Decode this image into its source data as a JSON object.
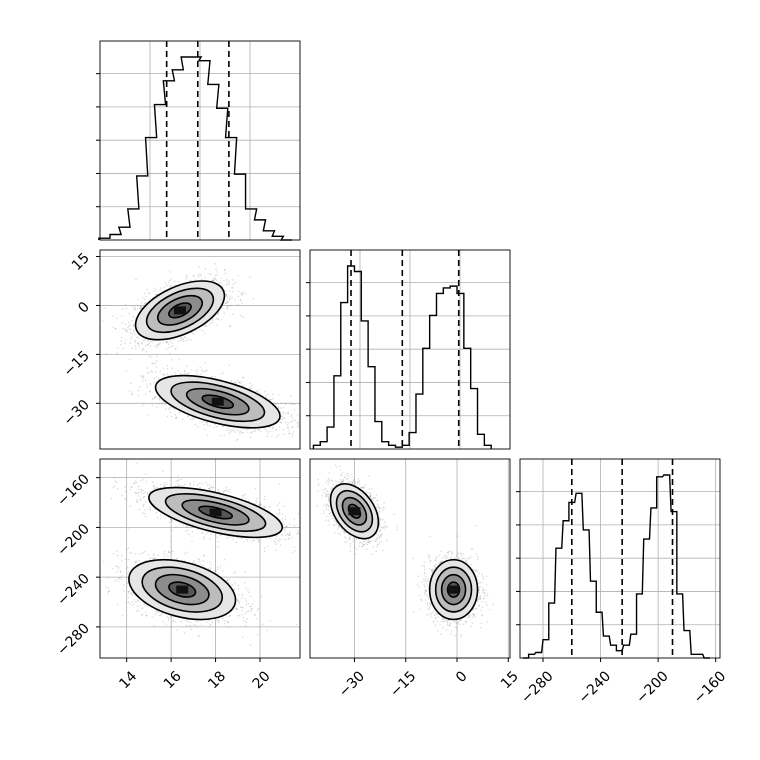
{
  "figure": {
    "kind": "corner plot",
    "background": "#ffffff",
    "line_color": "#000000",
    "point_color": "#888888",
    "grid_color": "#b0b0b0"
  },
  "chart_data": [
    {
      "id": "hist_p0",
      "type": "histogram",
      "grid": true,
      "xlim": [
        12.8,
        21.8
      ],
      "quantile_lines": [
        15.8,
        17.2,
        18.6
      ],
      "bins": [
        [
          13.0,
          0.01
        ],
        [
          13.5,
          0.03
        ],
        [
          13.9,
          0.07
        ],
        [
          14.3,
          0.17
        ],
        [
          14.7,
          0.35
        ],
        [
          15.1,
          0.56
        ],
        [
          15.5,
          0.74
        ],
        [
          15.9,
          0.87
        ],
        [
          16.3,
          0.93
        ],
        [
          16.7,
          1.0
        ],
        [
          17.1,
          1.0
        ],
        [
          17.5,
          0.98
        ],
        [
          17.9,
          0.85
        ],
        [
          18.3,
          0.72
        ],
        [
          18.7,
          0.56
        ],
        [
          19.1,
          0.36
        ],
        [
          19.6,
          0.17
        ],
        [
          20.0,
          0.11
        ],
        [
          20.4,
          0.05
        ],
        [
          20.8,
          0.02
        ],
        [
          21.2,
          0.0
        ]
      ]
    },
    {
      "id": "scatter_p0_p1",
      "type": "scatter",
      "subtype": "2d-density-contour",
      "grid": true,
      "xlim": [
        12.8,
        21.8
      ],
      "ylim": [
        -44,
        17
      ],
      "yticks": [
        "15",
        "0",
        "−15",
        "−30"
      ],
      "clusters": [
        {
          "center": [
            16.4,
            -1.5
          ],
          "sd": [
            1.0,
            4.5
          ],
          "rho": 0.5,
          "n": 2200
        },
        {
          "center": [
            18.1,
            -29.5
          ],
          "sd": [
            1.4,
            4.0
          ],
          "rho": -0.55,
          "n": 2200
        }
      ]
    },
    {
      "id": "hist_p1",
      "type": "histogram",
      "grid": true,
      "xlim": [
        -43,
        15.5
      ],
      "quantile_lines": [
        -31,
        -16,
        0.5
      ],
      "bins": [
        [
          -41,
          0.02
        ],
        [
          -39,
          0.04
        ],
        [
          -37,
          0.12
        ],
        [
          -35,
          0.4
        ],
        [
          -33,
          0.8
        ],
        [
          -31,
          1.0
        ],
        [
          -29,
          0.97
        ],
        [
          -27,
          0.7
        ],
        [
          -25,
          0.45
        ],
        [
          -23,
          0.15
        ],
        [
          -21,
          0.04
        ],
        [
          -19,
          0.02
        ],
        [
          -17,
          0.01
        ],
        [
          -15,
          0.02
        ],
        [
          -13,
          0.09
        ],
        [
          -11,
          0.3
        ],
        [
          -9,
          0.55
        ],
        [
          -7,
          0.73
        ],
        [
          -5,
          0.85
        ],
        [
          -3,
          0.88
        ],
        [
          -1,
          0.89
        ],
        [
          1,
          0.85
        ],
        [
          3,
          0.55
        ],
        [
          5,
          0.33
        ],
        [
          7,
          0.08
        ],
        [
          9,
          0.02
        ]
      ]
    },
    {
      "id": "scatter_p0_p2",
      "type": "scatter",
      "subtype": "2d-density-contour",
      "grid": true,
      "xlim": [
        12.8,
        21.8
      ],
      "ylim": [
        -305,
        -145
      ],
      "xticks": [
        "14",
        "16",
        "18",
        "20"
      ],
      "yticks": [
        "−160",
        "−200",
        "−240",
        "−280"
      ],
      "clusters": [
        {
          "center": [
            18.0,
            -188
          ],
          "sd": [
            1.5,
            10
          ],
          "rho": -0.6,
          "n": 2200
        },
        {
          "center": [
            16.5,
            -250
          ],
          "sd": [
            1.2,
            12
          ],
          "rho": -0.35,
          "n": 2200
        }
      ]
    },
    {
      "id": "scatter_p1_p2",
      "type": "scatter",
      "subtype": "2d-density-contour",
      "grid": true,
      "xlim": [
        -43,
        15.5
      ],
      "ylim": [
        -305,
        -145
      ],
      "xticks": [
        "−30",
        "−15",
        "0",
        "15"
      ],
      "clusters": [
        {
          "center": [
            -30,
            -187
          ],
          "sd": [
            3.5,
            11
          ],
          "rho": -0.4,
          "n": 2200
        },
        {
          "center": [
            -1,
            -250
          ],
          "sd": [
            3.5,
            12
          ],
          "rho": 0.0,
          "n": 2200
        }
      ]
    },
    {
      "id": "hist_p2",
      "type": "histogram",
      "grid": true,
      "xlim": [
        -296,
        -157
      ],
      "xticks": [
        "−280",
        "−240",
        "−200",
        "−160"
      ],
      "quantile_lines": [
        -260,
        -225,
        -190
      ],
      "bins": [
        [
          -292,
          0.0
        ],
        [
          -288,
          0.02
        ],
        [
          -283,
          0.03
        ],
        [
          -278,
          0.1
        ],
        [
          -274,
          0.3
        ],
        [
          -269,
          0.6
        ],
        [
          -264,
          0.75
        ],
        [
          -260,
          0.85
        ],
        [
          -255,
          0.9
        ],
        [
          -250,
          0.7
        ],
        [
          -245,
          0.42
        ],
        [
          -241,
          0.25
        ],
        [
          -236,
          0.12
        ],
        [
          -231,
          0.07
        ],
        [
          -227,
          0.04
        ],
        [
          -222,
          0.07
        ],
        [
          -217,
          0.13
        ],
        [
          -213,
          0.35
        ],
        [
          -208,
          0.65
        ],
        [
          -203,
          0.82
        ],
        [
          -199,
          0.99
        ],
        [
          -194,
          1.0
        ],
        [
          -189,
          0.8
        ],
        [
          -185,
          0.35
        ],
        [
          -180,
          0.15
        ],
        [
          -175,
          0.02
        ],
        [
          -171,
          0.02
        ],
        [
          -166,
          0.0
        ]
      ]
    }
  ]
}
